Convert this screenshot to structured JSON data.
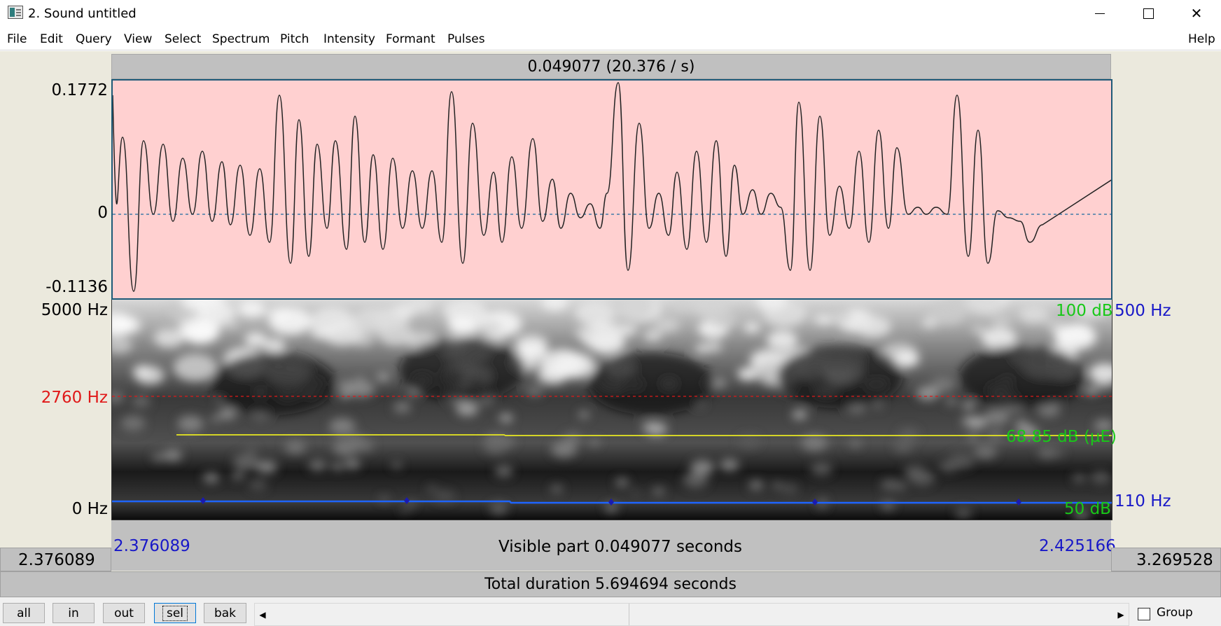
{
  "window": {
    "title": "2. Sound untitled",
    "icon": "praat-window-icon"
  },
  "menu": {
    "items": [
      "File",
      "Edit",
      "Query",
      "View",
      "Select",
      "Spectrum",
      "Pitch",
      "Intensity",
      "Formant",
      "Pulses"
    ],
    "help": "Help"
  },
  "visible_header": "0.049077 (20.376 / s)",
  "waveform": {
    "y_max": "0.1772",
    "y_zero": "0",
    "y_min": "-0.1136",
    "background": "#ffd0d0"
  },
  "spectrogram": {
    "freq_max": "5000 Hz",
    "cursor_freq": "2760 Hz",
    "freq_min": "0 Hz",
    "intensity_max": "100 dB",
    "intensity_value": "68.85 dB (µE)",
    "intensity_min": "50 dB",
    "pitch_max": "500 Hz",
    "pitch_min": "110 Hz"
  },
  "time": {
    "visible_start": "2.376089",
    "visible_end": "2.425166",
    "visible_part": "Visible part 0.049077 seconds",
    "window_start": "2.376089",
    "window_end": "3.269528",
    "total_duration": "Total duration 5.694694 seconds"
  },
  "buttons": {
    "all": "all",
    "in": "in",
    "out": "out",
    "sel": "sel",
    "bak": "bak"
  },
  "group": {
    "label": "Group",
    "checked": false
  },
  "colors": {
    "cursor_red": "#e01818",
    "label_blue": "#1818c8",
    "intensity_green": "#18c818",
    "intensity_line": "#e8e820",
    "pitch_line": "#1e64ff"
  }
}
